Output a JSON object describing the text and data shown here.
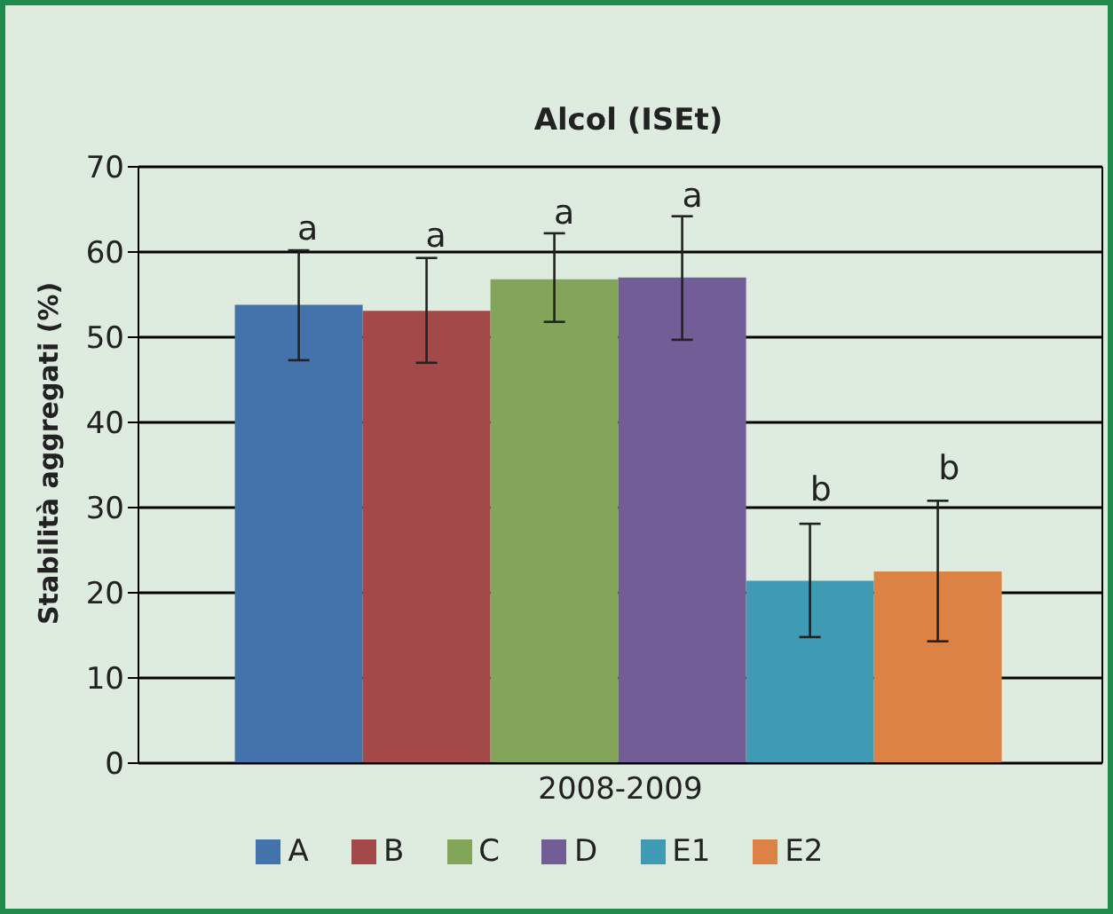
{
  "chart_data": {
    "type": "bar",
    "title": "Alcol (ISEt)",
    "ylabel": "Stabilità aggregati (%)",
    "categories": [
      "2008-2009"
    ],
    "series": [
      {
        "name": "A",
        "color": "#4472aa",
        "values": [
          53.8
        ],
        "errors": [
          [
            47.3,
            60.2
          ]
        ],
        "value_labels": [
          "a"
        ]
      },
      {
        "name": "B",
        "color": "#a4494a",
        "values": [
          53.1
        ],
        "errors": [
          [
            47.0,
            59.3
          ]
        ],
        "value_labels": [
          "a"
        ]
      },
      {
        "name": "C",
        "color": "#83a55a",
        "values": [
          56.8
        ],
        "errors": [
          [
            51.8,
            62.2
          ]
        ],
        "value_labels": [
          "a"
        ]
      },
      {
        "name": "D",
        "color": "#725d97",
        "values": [
          57.0
        ],
        "errors": [
          [
            49.7,
            64.2
          ]
        ],
        "value_labels": [
          "a"
        ]
      },
      {
        "name": "E1",
        "color": "#3f9ab3",
        "values": [
          21.4
        ],
        "errors": [
          [
            14.8,
            28.1
          ]
        ],
        "value_labels": [
          "b"
        ]
      },
      {
        "name": "E2",
        "color": "#db8244",
        "values": [
          22.5
        ],
        "errors": [
          [
            14.3,
            30.8
          ]
        ],
        "value_labels": [
          "b"
        ]
      }
    ],
    "ylim": [
      0,
      70
    ],
    "yticks": [
      0,
      10,
      20,
      30,
      40,
      50,
      60,
      70
    ],
    "grid": "y",
    "legend": "bottom"
  }
}
